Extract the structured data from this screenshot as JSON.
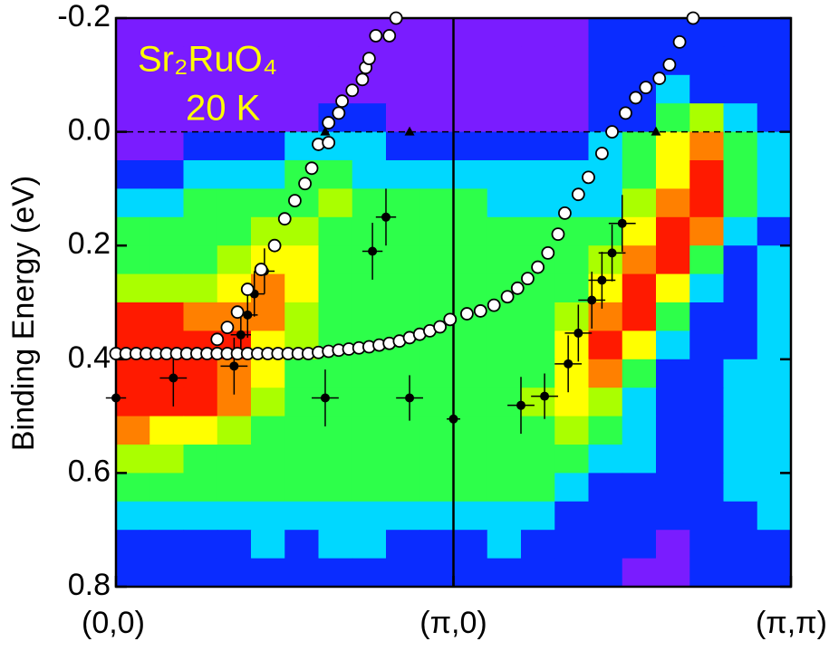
{
  "chart_data": {
    "type": "heatmap",
    "ylabel": "Binding Energy (eV)",
    "annotations": [
      "Sr₂RuO₄",
      "20 K"
    ],
    "annotation_color": "#ffff00",
    "xlim": [
      0,
      2
    ],
    "ylim": [
      -0.2,
      0.8
    ],
    "y_inverted": true,
    "xticks": [
      {
        "value": 0,
        "label": "(0,0)"
      },
      {
        "value": 1,
        "label": "(π,0)"
      },
      {
        "value": 2,
        "label": "(π,π)"
      }
    ],
    "yticks": [
      -0.2,
      {
        "value": 0,
        "label": "0.0"
      },
      0.2,
      0.4,
      0.6,
      0.8
    ],
    "hlines": [
      0
    ],
    "vlines": [
      1
    ],
    "colormap": [
      "#7a1cff",
      "#0a2cff",
      "#00d8ff",
      "#2dff4a",
      "#aaff00",
      "#ffff00",
      "#ff8000",
      "#ff1a00"
    ],
    "z": [
      [
        0,
        0,
        0,
        0,
        0,
        0,
        0,
        0,
        0,
        0,
        0,
        0,
        0,
        0,
        1,
        1,
        1,
        1,
        1,
        1
      ],
      [
        0,
        0,
        0,
        0,
        0,
        0,
        0,
        0,
        0,
        0,
        0,
        0,
        0,
        0,
        1,
        1,
        1,
        1,
        1,
        1
      ],
      [
        0,
        0,
        0,
        0,
        0,
        0,
        0,
        0,
        0,
        0,
        0,
        0,
        0,
        0,
        1,
        1,
        2,
        1,
        1,
        1
      ],
      [
        0,
        0,
        0,
        0,
        0,
        0,
        1,
        1,
        0,
        0,
        0,
        0,
        0,
        0,
        1,
        1,
        3,
        4,
        2,
        1
      ],
      [
        0,
        0,
        1,
        1,
        1,
        2,
        2,
        2,
        1,
        1,
        1,
        1,
        1,
        1,
        2,
        3,
        5,
        6,
        3,
        2
      ],
      [
        1,
        1,
        2,
        2,
        2,
        3,
        3,
        2,
        2,
        2,
        2,
        2,
        2,
        2,
        2,
        3,
        5,
        7,
        3,
        2
      ],
      [
        2,
        2,
        3,
        3,
        3,
        3,
        4,
        3,
        3,
        3,
        3,
        2,
        2,
        2,
        2,
        4,
        6,
        7,
        3,
        2
      ],
      [
        3,
        3,
        3,
        3,
        4,
        4,
        3,
        3,
        3,
        3,
        3,
        3,
        3,
        3,
        3,
        5,
        7,
        6,
        2,
        1
      ],
      [
        3,
        3,
        3,
        4,
        5,
        5,
        3,
        3,
        3,
        3,
        3,
        3,
        3,
        3,
        4,
        6,
        7,
        3,
        1,
        2
      ],
      [
        4,
        4,
        4,
        5,
        6,
        5,
        3,
        3,
        3,
        3,
        3,
        3,
        3,
        3,
        5,
        7,
        5,
        2,
        1,
        2
      ],
      [
        7,
        7,
        6,
        6,
        6,
        4,
        3,
        3,
        3,
        3,
        3,
        3,
        3,
        4,
        6,
        7,
        3,
        1,
        1,
        2
      ],
      [
        7,
        7,
        7,
        7,
        5,
        4,
        3,
        3,
        3,
        3,
        3,
        3,
        3,
        5,
        7,
        5,
        2,
        1,
        1,
        2
      ],
      [
        7,
        7,
        7,
        6,
        5,
        3,
        3,
        3,
        3,
        3,
        3,
        3,
        3,
        5,
        6,
        3,
        1,
        1,
        2,
        2
      ],
      [
        7,
        7,
        7,
        6,
        4,
        3,
        3,
        3,
        3,
        3,
        3,
        3,
        4,
        5,
        4,
        2,
        1,
        1,
        2,
        2
      ],
      [
        6,
        5,
        5,
        4,
        3,
        3,
        3,
        3,
        3,
        3,
        3,
        3,
        3,
        4,
        3,
        2,
        1,
        1,
        2,
        2
      ],
      [
        4,
        4,
        3,
        3,
        3,
        3,
        3,
        3,
        3,
        3,
        3,
        3,
        3,
        3,
        2,
        2,
        1,
        1,
        2,
        2
      ],
      [
        3,
        3,
        3,
        3,
        3,
        3,
        3,
        3,
        3,
        3,
        3,
        3,
        3,
        2,
        1,
        1,
        1,
        1,
        2,
        2
      ],
      [
        2,
        2,
        2,
        2,
        2,
        2,
        2,
        2,
        2,
        2,
        2,
        2,
        2,
        1,
        1,
        1,
        1,
        1,
        1,
        2
      ],
      [
        1,
        1,
        1,
        1,
        2,
        1,
        2,
        2,
        1,
        1,
        1,
        2,
        1,
        1,
        1,
        1,
        0,
        1,
        1,
        1
      ],
      [
        1,
        1,
        1,
        1,
        1,
        1,
        1,
        1,
        1,
        1,
        1,
        1,
        1,
        1,
        1,
        0,
        0,
        1,
        1,
        1
      ]
    ],
    "open_circles": {
      "x": [
        0,
        0.03,
        0.06,
        0.09,
        0.12,
        0.15,
        0.18,
        0.21,
        0.24,
        0.27,
        0.3,
        0.33,
        0.36,
        0.39,
        0.42,
        0.45,
        0.48,
        0.51,
        0.54,
        0.57,
        0.6,
        0.63,
        0.66,
        0.69,
        0.72,
        0.75,
        0.78,
        0.81,
        0.84,
        0.87,
        0.9,
        0.93,
        0.96,
        0.99,
        1.04,
        1.08,
        1.12,
        1.16,
        1.19,
        1.22,
        1.25,
        1.28,
        1.31,
        1.33,
        1.37,
        1.4,
        1.44,
        1.47,
        1.51,
        1.54,
        1.57,
        1.61,
        1.64,
        1.67,
        1.71,
        0.3,
        0.33,
        0.36,
        0.39,
        0.43,
        0.47,
        0.5,
        0.53,
        0.56,
        0.58,
        0.6,
        0.63,
        0.63,
        0.66,
        0.67,
        0.7,
        0.73,
        0.74,
        0.75,
        0.77,
        0.81,
        0.83
      ],
      "y": [
        0.39,
        0.39,
        0.39,
        0.39,
        0.39,
        0.39,
        0.39,
        0.39,
        0.39,
        0.39,
        0.39,
        0.39,
        0.39,
        0.39,
        0.39,
        0.39,
        0.39,
        0.39,
        0.39,
        0.39,
        0.388,
        0.386,
        0.384,
        0.382,
        0.38,
        0.378,
        0.375,
        0.372,
        0.368,
        0.362,
        0.356,
        0.35,
        0.343,
        0.33,
        0.32,
        0.315,
        0.305,
        0.29,
        0.275,
        0.258,
        0.238,
        0.213,
        0.18,
        0.143,
        0.11,
        0.08,
        0.038,
        0.0,
        -0.033,
        -0.06,
        -0.078,
        -0.094,
        -0.118,
        -0.158,
        -0.2,
        0.365,
        0.344,
        0.317,
        0.277,
        0.242,
        0.2,
        0.153,
        0.121,
        0.091,
        0.064,
        0.022,
        0.019,
        -0.016,
        -0.033,
        -0.054,
        -0.073,
        -0.092,
        -0.113,
        -0.129,
        -0.169,
        -0.169,
        -0.2
      ]
    },
    "points": {
      "x": [
        0,
        0.17,
        0.35,
        0.62,
        0.87,
        1.0,
        1.2,
        1.27,
        1.34,
        1.37,
        1.41,
        1.44,
        1.47,
        1.5,
        0.76,
        0.8,
        0.37,
        0.39,
        0.41,
        0.44
      ],
      "y": [
        0.468,
        0.433,
        0.412,
        0.468,
        0.468,
        0.505,
        0.481,
        0.465,
        0.408,
        0.354,
        0.296,
        0.261,
        0.213,
        0.161,
        0.21,
        0.15,
        0.357,
        0.322,
        0.285,
        0.245
      ],
      "xerr": [
        0.03,
        0.04,
        0.04,
        0.04,
        0.04,
        0.02,
        0.04,
        0.04,
        0.04,
        0.04,
        0.04,
        0.04,
        0.04,
        0.04,
        0.03,
        0.03,
        0.03,
        0.03,
        0.03,
        0.03
      ],
      "yerr": [
        0.03,
        0.05,
        0.05,
        0.05,
        0.04,
        0.05,
        0.05,
        0.04,
        0.05,
        0.05,
        0.05,
        0.05,
        0.05,
        0.05,
        0.05,
        0.05,
        0.04,
        0.04,
        0.04,
        0.04
      ]
    },
    "triangles": {
      "x": [
        0.62,
        0.87,
        1.6
      ],
      "y": [
        0,
        0,
        0
      ]
    }
  }
}
